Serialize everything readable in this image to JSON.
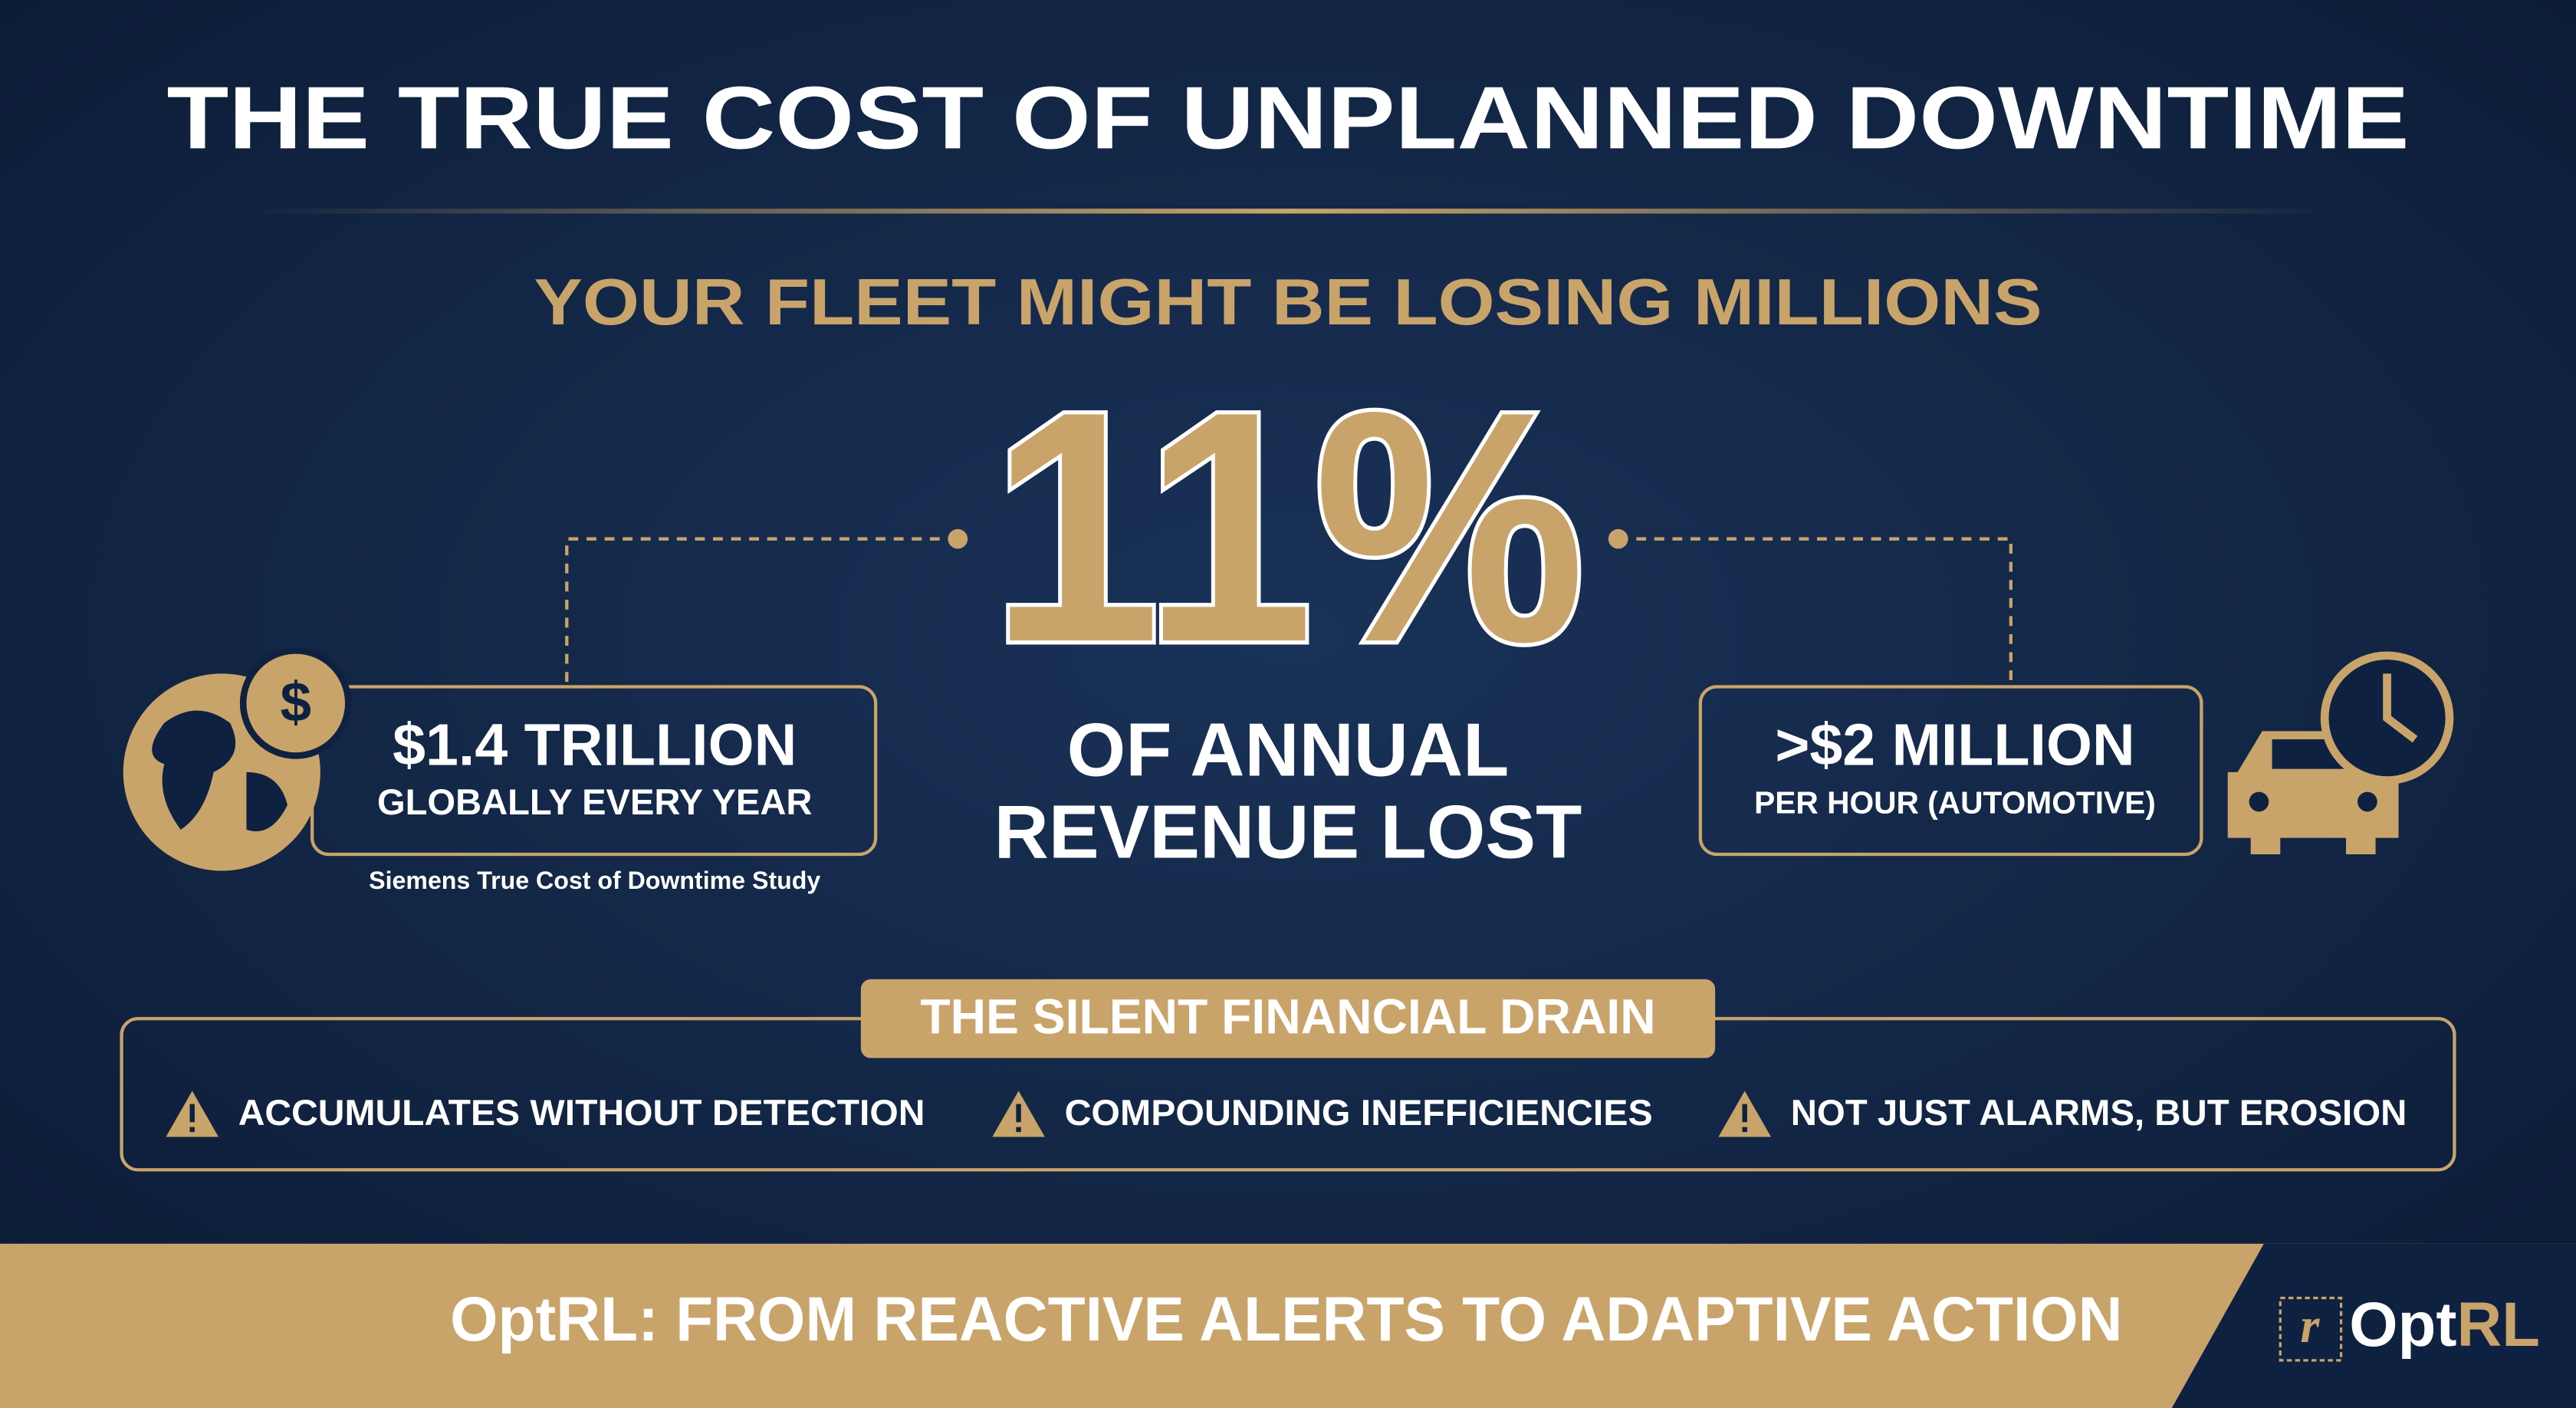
{
  "header": {
    "title": "THE TRUE COST OF UNPLANNED DOWNTIME",
    "subtitle": "YOUR FLEET MIGHT BE LOSING MILLIONS"
  },
  "hero": {
    "stat": "11%",
    "caption": [
      "OF ANNUAL",
      "REVENUE LOST"
    ]
  },
  "left_stat": {
    "icon_symbol": "$",
    "value": "$1.4 TRILLION",
    "label": "GLOBALLY EVERY YEAR",
    "source": "Siemens True Cost of Downtime Study"
  },
  "right_stat": {
    "value": ">$2 MILLION",
    "label": "PER HOUR (AUTOMOTIVE)"
  },
  "drain": {
    "title": "THE SILENT FINANCIAL DRAIN",
    "items": [
      "ACCUMULATES WITHOUT DETECTION",
      "COMPOUNDING INEFFICIENCIES",
      "NOT JUST ALARMS, BUT EROSION"
    ]
  },
  "footer": {
    "tagline": "OptRL: FROM REACTIVE ALERTS TO ADAPTIVE ACTION",
    "logo_mark": "r",
    "logo": [
      "Opt",
      "RL"
    ]
  }
}
